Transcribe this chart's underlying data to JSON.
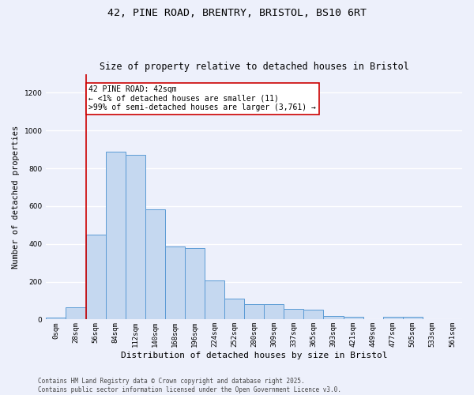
{
  "title_line1": "42, PINE ROAD, BRENTRY, BRISTOL, BS10 6RT",
  "title_line2": "Size of property relative to detached houses in Bristol",
  "xlabel": "Distribution of detached houses by size in Bristol",
  "ylabel": "Number of detached properties",
  "bar_labels": [
    "0sqm",
    "28sqm",
    "56sqm",
    "84sqm",
    "112sqm",
    "140sqm",
    "168sqm",
    "196sqm",
    "224sqm",
    "252sqm",
    "280sqm",
    "309sqm",
    "337sqm",
    "365sqm",
    "393sqm",
    "421sqm",
    "449sqm",
    "477sqm",
    "505sqm",
    "533sqm",
    "561sqm"
  ],
  "bar_heights": [
    11,
    65,
    450,
    890,
    870,
    585,
    385,
    380,
    205,
    110,
    80,
    80,
    55,
    50,
    20,
    15,
    0,
    15,
    15,
    0,
    2
  ],
  "bar_color": "#c5d8f0",
  "bar_edge_color": "#5b9bd5",
  "vline_x": 1.5,
  "vline_color": "#cc0000",
  "annotation_text": "42 PINE ROAD: 42sqm\n← <1% of detached houses are smaller (11)\n>99% of semi-detached houses are larger (3,761) →",
  "annotation_box_color": "#ffffff",
  "annotation_box_edge": "#cc0000",
  "ylim": [
    0,
    1300
  ],
  "yticks": [
    0,
    200,
    400,
    600,
    800,
    1000,
    1200
  ],
  "footnote": "Contains HM Land Registry data © Crown copyright and database right 2025.\nContains public sector information licensed under the Open Government Licence v3.0.",
  "bg_color": "#edf0fb",
  "plot_bg_color": "#edf0fb",
  "grid_color": "#ffffff",
  "title_fontsize": 9.5,
  "subtitle_fontsize": 8.5,
  "xlabel_fontsize": 8,
  "ylabel_fontsize": 7.5,
  "tick_fontsize": 6.5,
  "annot_fontsize": 7,
  "footnote_fontsize": 5.5
}
